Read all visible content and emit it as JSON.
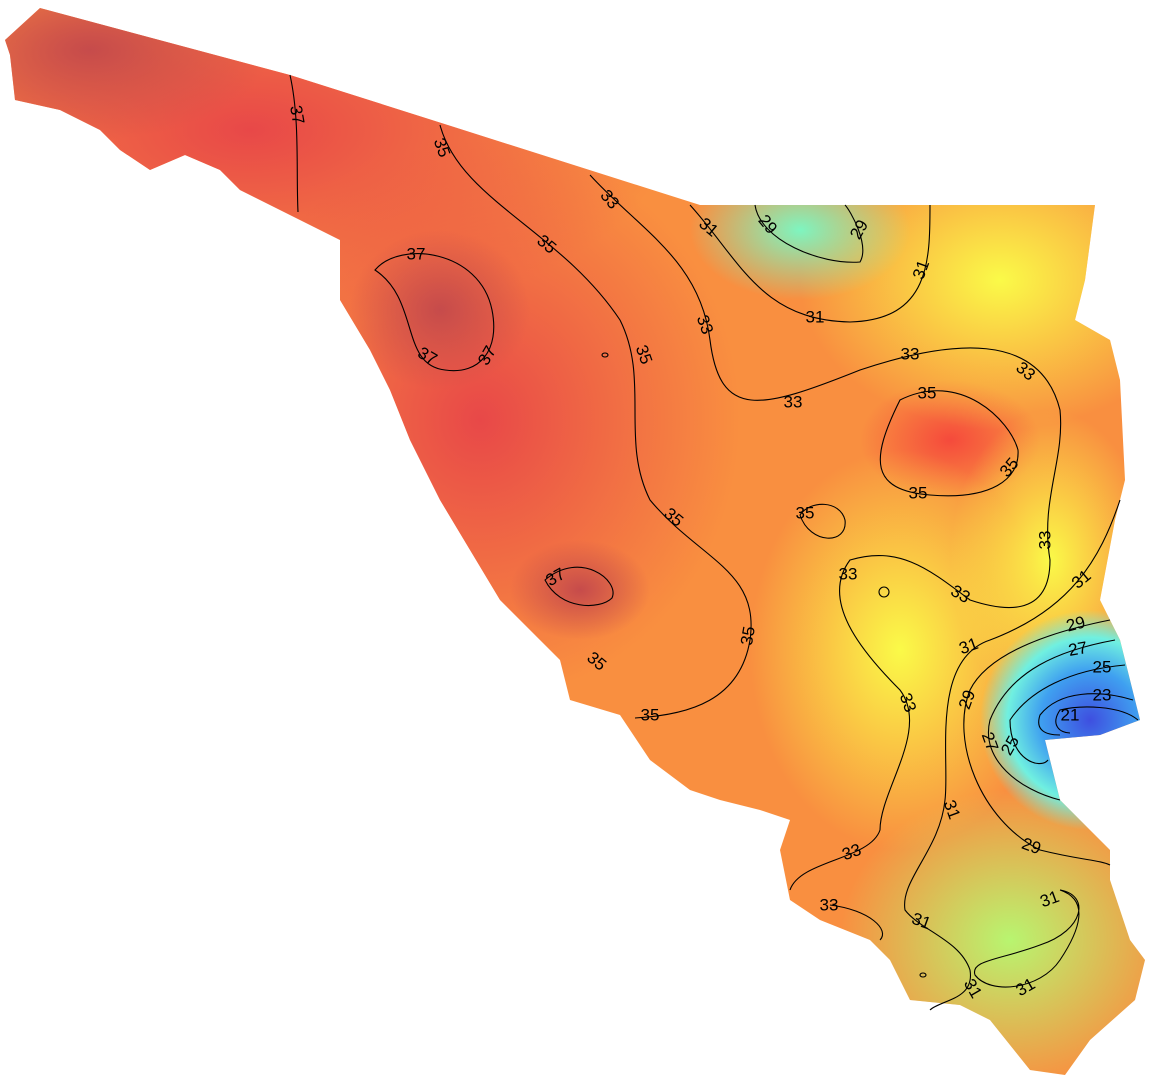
{
  "contour_labels": [
    37,
    35,
    33,
    31,
    29,
    29,
    31,
    35,
    37,
    37,
    37,
    33,
    31,
    35,
    33,
    33,
    33,
    35,
    35,
    35,
    35,
    35,
    33,
    37,
    33,
    33,
    31,
    29,
    35,
    31,
    27,
    35,
    25,
    29,
    23,
    33,
    35,
    21,
    27,
    25,
    31,
    29,
    33,
    31,
    33,
    31,
    31,
    31
  ]
}
